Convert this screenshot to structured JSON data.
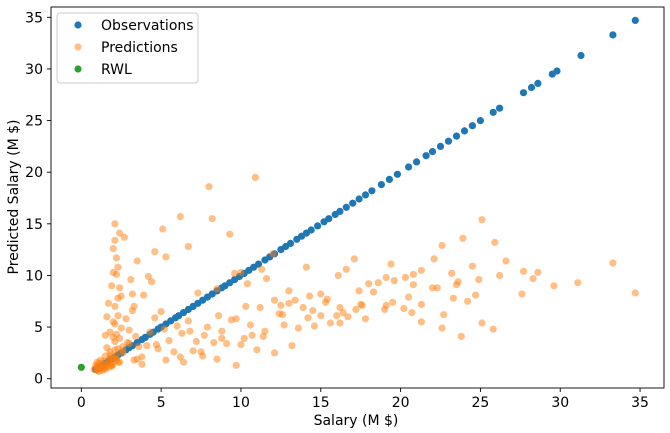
{
  "chart_data": {
    "type": "scatter",
    "title": "",
    "xlabel": "Salary (M $)",
    "ylabel": "Predicted Salary (M $)",
    "xlim": [
      -1.9,
      36.5
    ],
    "ylim": [
      -0.9,
      36.0
    ],
    "xticks": [
      0,
      5,
      10,
      15,
      20,
      25,
      30,
      35
    ],
    "yticks": [
      0,
      5,
      10,
      15,
      20,
      25,
      30,
      35
    ],
    "grid": false,
    "legend_position": "top-left",
    "series": [
      {
        "name": "Observations",
        "color": "#1f77b4",
        "alpha": 1.0,
        "x": [
          0.9,
          1.0,
          1.1,
          1.2,
          1.3,
          1.5,
          1.7,
          1.9,
          2.1,
          2.3,
          2.5,
          2.8,
          3.0,
          3.2,
          3.5,
          3.8,
          4.0,
          4.3,
          4.5,
          4.8,
          5.0,
          5.3,
          5.6,
          5.9,
          6.1,
          6.4,
          6.7,
          7.0,
          7.3,
          7.6,
          7.9,
          8.2,
          8.5,
          8.8,
          9.0,
          9.3,
          9.6,
          9.9,
          10.2,
          10.5,
          10.8,
          11.1,
          11.5,
          11.8,
          12.1,
          12.5,
          12.8,
          13.1,
          13.5,
          13.8,
          14.1,
          14.4,
          14.8,
          15.2,
          15.5,
          15.9,
          16.2,
          16.6,
          17.0,
          17.4,
          17.8,
          18.2,
          18.8,
          19.3,
          19.8,
          20.5,
          21.0,
          21.6,
          22.0,
          22.5,
          23.0,
          23.5,
          24.0,
          24.5,
          25.0,
          25.8,
          26.2,
          27.7,
          28.2,
          28.6,
          29.5,
          29.8,
          31.3,
          33.3,
          34.7
        ],
        "y": [
          0.9,
          1.0,
          1.1,
          1.2,
          1.3,
          1.5,
          1.7,
          1.9,
          2.1,
          2.3,
          2.5,
          2.8,
          3.0,
          3.2,
          3.5,
          3.8,
          4.0,
          4.3,
          4.5,
          4.8,
          5.0,
          5.3,
          5.6,
          5.9,
          6.1,
          6.4,
          6.7,
          7.0,
          7.3,
          7.6,
          7.9,
          8.2,
          8.5,
          8.8,
          9.0,
          9.3,
          9.6,
          9.9,
          10.2,
          10.5,
          10.8,
          11.1,
          11.5,
          11.8,
          12.1,
          12.5,
          12.8,
          13.1,
          13.5,
          13.8,
          14.1,
          14.4,
          14.8,
          15.2,
          15.5,
          15.9,
          16.2,
          16.6,
          17.0,
          17.4,
          17.8,
          18.2,
          18.8,
          19.3,
          19.8,
          20.5,
          21.0,
          21.6,
          22.0,
          22.5,
          23.0,
          23.5,
          24.0,
          24.5,
          25.0,
          25.8,
          26.2,
          27.7,
          28.2,
          28.6,
          29.5,
          29.8,
          31.3,
          33.3,
          34.7
        ]
      },
      {
        "name": "Predictions",
        "color": "#ff7f0e",
        "alpha": 0.5,
        "x": [
          0.8,
          0.9,
          1.0,
          1.0,
          1.1,
          1.2,
          1.2,
          1.3,
          1.4,
          1.5,
          1.5,
          1.6,
          1.7,
          1.8,
          1.9,
          2.0,
          2.0,
          2.1,
          2.1,
          2.2,
          2.2,
          2.3,
          2.3,
          2.4,
          2.5,
          2.5,
          2.6,
          1.6,
          1.7,
          1.8,
          1.9,
          2.0,
          2.1,
          2.2,
          2.3,
          2.4,
          1.5,
          1.8,
          2.0,
          2.2,
          2.4,
          2.6,
          2.8,
          3.0,
          3.2,
          3.4,
          2.1,
          2.3,
          2.7,
          3.1,
          3.5,
          3.9,
          4.2,
          4.6,
          5.0,
          2.1,
          2.2,
          2.4,
          3.2,
          3.3,
          4.4,
          5.1,
          5.3,
          6.2,
          6.7,
          7.3,
          8.0,
          8.2,
          8.5,
          9.3,
          9.6,
          10.0,
          10.4,
          10.9,
          11.3,
          11.6,
          12.0,
          12.5,
          13.0,
          13.4,
          14.1,
          14.6,
          15.0,
          15.3,
          16.1,
          16.6,
          17.1,
          17.5,
          18.0,
          18.6,
          19.1,
          19.4,
          20.3,
          20.8,
          21.3,
          22.1,
          22.6,
          23.2,
          23.9,
          24.5,
          25.1,
          25.9,
          26.6,
          27.7,
          28.6,
          29.6,
          31.1,
          33.3,
          34.7,
          2.2,
          2.9,
          3.6,
          4.3,
          5.2,
          6.0,
          6.7,
          7.7,
          8.6,
          9.4,
          10.3,
          11.2,
          12.1,
          13.0,
          14.3,
          15.4,
          16.2,
          17.4,
          18.3,
          19.6,
          20.8,
          22.3,
          23.5,
          24.9,
          26.2,
          28.3,
          2.0,
          2.6,
          3.3,
          4.1,
          4.8,
          5.5,
          6.3,
          7.0,
          7.9,
          8.8,
          9.7,
          10.6,
          11.5,
          12.4,
          13.6,
          14.5,
          15.6,
          16.7,
          17.8,
          19.1,
          20.2,
          21.3,
          22.7,
          24.2,
          25.8,
          27.6,
          2.0,
          2.3,
          3.5,
          5.8,
          6.2,
          8.3,
          8.5,
          11.0,
          9.7,
          3.8,
          7.2,
          13.2,
          10.2,
          12.1,
          16.2,
          20.7,
          22.6,
          23.8,
          25.1,
          3.0,
          4.7,
          5.3,
          6.8,
          7.5,
          9.1,
          10.7,
          12.7,
          14.2,
          16.0,
          17.2,
          19.5,
          21.3,
          23.3,
          24.7,
          2.1,
          3.8,
          4.6,
          6.4,
          7.6,
          8.8,
          10.0,
          11.4,
          12.6,
          13.9,
          15.0,
          16.4,
          17.6,
          19.0,
          20.5,
          22.0,
          23.6,
          1.0,
          1.2,
          1.4,
          1.6,
          1.8,
          1.1,
          1.3,
          1.5,
          1.7,
          1.9,
          2.0,
          1.0,
          1.4,
          1.8
        ],
        "y": [
          0.9,
          1.3,
          1.6,
          0.8,
          1.5,
          1.2,
          1.8,
          1.0,
          1.4,
          2.2,
          1.1,
          3.0,
          1.7,
          2.6,
          1.3,
          5.5,
          2.0,
          3.6,
          7.0,
          1.8,
          4.3,
          2.9,
          6.1,
          1.6,
          4.9,
          8.0,
          3.1,
          6.0,
          7.3,
          4.5,
          9.0,
          10.3,
          5.3,
          11.7,
          7.8,
          3.9,
          4.2,
          2.3,
          12.6,
          1.9,
          8.8,
          2.7,
          5.8,
          3.4,
          6.6,
          4.1,
          15.0,
          10.8,
          13.7,
          9.6,
          11.4,
          8.1,
          9.9,
          12.3,
          6.5,
          13.4,
          10.1,
          14.1,
          8.2,
          7.0,
          9.4,
          14.5,
          11.8,
          15.7,
          12.8,
          8.3,
          18.6,
          15.5,
          8.7,
          14.0,
          10.2,
          10.3,
          9.2,
          19.5,
          10.6,
          9.7,
          12.1,
          7.1,
          8.5,
          7.6,
          10.8,
          5.1,
          8.2,
          7.4,
          10.0,
          10.6,
          11.6,
          7.2,
          9.2,
          9.3,
          9.8,
          11.1,
          9.8,
          10.1,
          10.5,
          11.6,
          12.9,
          10.2,
          13.6,
          10.9,
          15.4,
          13.2,
          11.4,
          10.4,
          10.3,
          9.0,
          9.3,
          11.2,
          8.3,
          2.3,
          3.5,
          3.1,
          4.5,
          4.8,
          5.1,
          5.6,
          4.2,
          6.1,
          5.7,
          7.0,
          6.9,
          7.6,
          7.3,
          8.0,
          7.7,
          6.9,
          8.5,
          8.4,
          9.5,
          9.1,
          8.8,
          9.1,
          9.6,
          10.0,
          9.7,
          4.0,
          2.5,
          1.8,
          3.2,
          2.9,
          3.7,
          4.4,
          2.7,
          5.0,
          3.9,
          5.8,
          5.2,
          4.6,
          6.3,
          4.9,
          6.6,
          5.4,
          6.0,
          5.8,
          7.1,
          6.8,
          5.5,
          6.2,
          7.5,
          4.8,
          8.2,
          2.0,
          1.6,
          1.9,
          2.6,
          2.1,
          3.5,
          1.9,
          2.8,
          1.3,
          1.4,
          3.6,
          3.2,
          3.9,
          2.5,
          5.4,
          6.4,
          4.9,
          4.1,
          5.4,
          4.7,
          3.3,
          1.8,
          4.6,
          2.6,
          3.4,
          4.2,
          5.2,
          5.9,
          6.1,
          6.7,
          7.4,
          7.2,
          7.8,
          8.1,
          2.8,
          2.1,
          5.9,
          1.6,
          2.2,
          4.6,
          3.3,
          4.1,
          6.2,
          6.9,
          6.1,
          6.4,
          7.1,
          6.7,
          7.9,
          8.8,
          9.4,
          0.9,
          1.1,
          1.0,
          1.3,
          1.5,
          0.7,
          0.8,
          0.9,
          1.1,
          1.2,
          1.4,
          1.2,
          1.7,
          2.0
        ]
      },
      {
        "name": "RWL",
        "color": "#2ca02c",
        "alpha": 1.0,
        "x": [
          0.0
        ],
        "y": [
          1.1
        ]
      }
    ]
  }
}
